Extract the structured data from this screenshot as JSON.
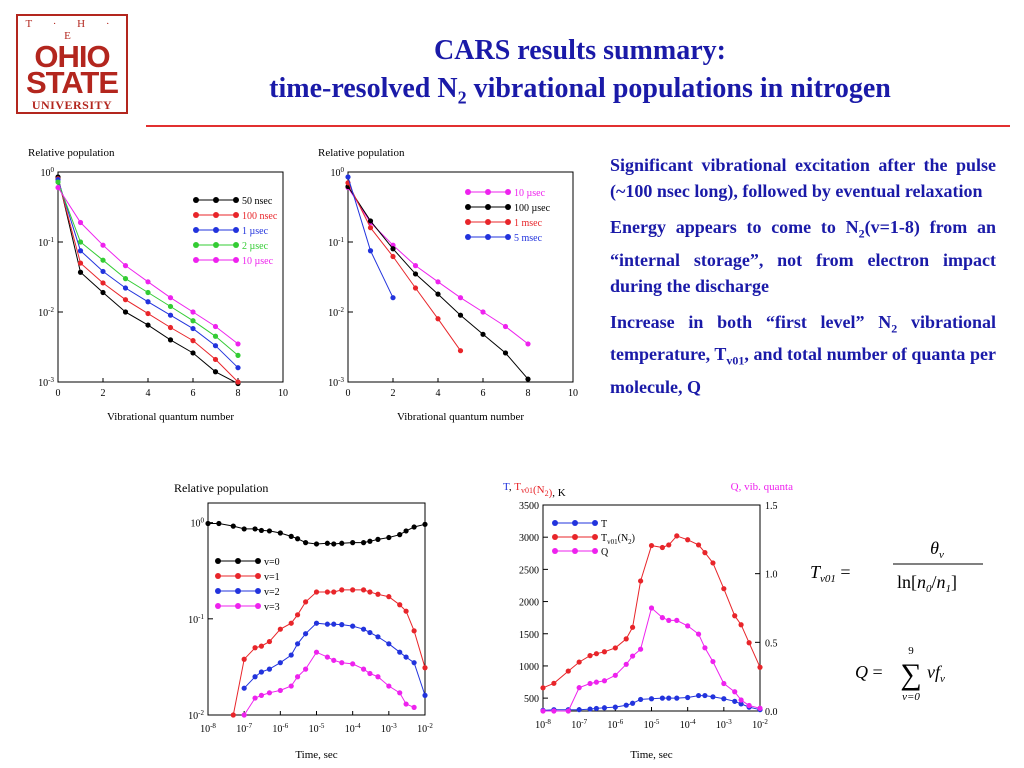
{
  "logo": {
    "line1": "T · H · E",
    "line2": "OHIO",
    "line3": "STATE",
    "line4": "UNIVERSITY"
  },
  "title": {
    "line1": "CARS results summary:",
    "line2_pre": "time-resolved N",
    "line2_sub": "2",
    "line2_post": " vibrational populations in nitrogen"
  },
  "bullets": [
    {
      "pre": "Significant vibrational excitation after the pulse (~100 nsec long), followed by eventual relaxation",
      "sub": "",
      "post": ""
    },
    {
      "pre": "Energy appears to come to N",
      "sub": "2",
      "post": "(v=1-8) from an “internal storage”, not from electron impact during the discharge"
    },
    {
      "pre": "Increase in both “first level” N",
      "sub": "2",
      "post": " vibrational temperature, T",
      "sub2": "v01",
      "post2": ", and total number of quanta per molecule, Q"
    }
  ],
  "formulas": {
    "t_lhs": "T",
    "t_lhs_sub": "v01",
    "theta": "θ",
    "theta_sub": "v",
    "ln": "ln",
    "n0": "n",
    "n0_sub": "0",
    "n1": "n",
    "n1_sub": "1",
    "q_lhs": "Q",
    "sum_top": "9",
    "sum_bot": "v=0",
    "q_rhs": "vf",
    "q_rhs_sub": "v"
  },
  "chart_data": [
    {
      "type": "line",
      "ytitle": "Relative population",
      "xlabel": "Vibrational quantum number",
      "x": [
        0,
        1,
        2,
        3,
        4,
        5,
        6,
        7,
        8
      ],
      "xlim": [
        0,
        10
      ],
      "xticks": [
        0,
        2,
        4,
        6,
        8,
        10
      ],
      "ylog": true,
      "ylim": [
        0.001,
        1
      ],
      "yticks": [
        {
          "b": "10",
          "e": "0"
        },
        {
          "b": "10",
          "e": "-1"
        },
        {
          "b": "10",
          "e": "-2"
        },
        {
          "b": "10",
          "e": "-3"
        }
      ],
      "legend_position": "top-right",
      "series": [
        {
          "name": "50 nsec",
          "color": "#000000",
          "values": [
            0.85,
            0.037,
            0.019,
            0.01,
            0.0065,
            0.004,
            0.0026,
            0.0014,
            0.00095
          ]
        },
        {
          "name": "100 nsec",
          "color": "#e8252a",
          "values": [
            0.8,
            0.05,
            0.026,
            0.015,
            0.0095,
            0.006,
            0.0039,
            0.0021,
            0.001
          ]
        },
        {
          "name": "1 µsec",
          "color": "#2233dd",
          "values": [
            0.78,
            0.075,
            0.038,
            0.022,
            0.014,
            0.009,
            0.0058,
            0.0033,
            0.0016
          ]
        },
        {
          "name": "2 µsec",
          "color": "#33cc33",
          "values": [
            0.72,
            0.1,
            0.055,
            0.03,
            0.019,
            0.012,
            0.0075,
            0.0045,
            0.0024
          ]
        },
        {
          "name": "10 µsec",
          "color": "#ee22ee",
          "values": [
            0.6,
            0.19,
            0.09,
            0.046,
            0.027,
            0.016,
            0.01,
            0.0062,
            0.0035
          ]
        }
      ]
    },
    {
      "type": "line",
      "ytitle": "Relative population",
      "xlabel": "Vibrational quantum number",
      "xlim": [
        0,
        10
      ],
      "xticks": [
        0,
        2,
        4,
        6,
        8,
        10
      ],
      "ylog": true,
      "ylim": [
        0.001,
        1
      ],
      "yticks": [
        {
          "b": "10",
          "e": "0"
        },
        {
          "b": "10",
          "e": "-1"
        },
        {
          "b": "10",
          "e": "-2"
        },
        {
          "b": "10",
          "e": "-3"
        }
      ],
      "legend_position": "top-right",
      "series": [
        {
          "name": "10 µsec",
          "color": "#ee22ee",
          "x": [
            0,
            1,
            2,
            3,
            4,
            5,
            6,
            7,
            8
          ],
          "values": [
            0.6,
            0.19,
            0.09,
            0.046,
            0.027,
            0.016,
            0.01,
            0.0062,
            0.0035
          ]
        },
        {
          "name": "100 µsec",
          "color": "#000000",
          "x": [
            0,
            1,
            2,
            3,
            4,
            5,
            6,
            7,
            8
          ],
          "values": [
            0.62,
            0.2,
            0.08,
            0.035,
            0.018,
            0.009,
            0.0048,
            0.0026,
            0.0011
          ]
        },
        {
          "name": "1 msec",
          "color": "#e8252a",
          "x": [
            0,
            1,
            2,
            3,
            4,
            5
          ],
          "values": [
            0.7,
            0.16,
            0.062,
            0.022,
            0.008,
            0.0028
          ]
        },
        {
          "name": "5 msec",
          "color": "#2233dd",
          "x": [
            0,
            1,
            2
          ],
          "values": [
            0.85,
            0.075,
            0.016
          ]
        }
      ]
    },
    {
      "type": "line",
      "ytitle": "Relative population",
      "xlabel": "Time, sec",
      "xlog": true,
      "xlim": [
        1e-08,
        0.01
      ],
      "xticks": [
        {
          "b": "10",
          "e": "-8"
        },
        {
          "b": "10",
          "e": "-7"
        },
        {
          "b": "10",
          "e": "-6"
        },
        {
          "b": "10",
          "e": "-5"
        },
        {
          "b": "10",
          "e": "-4"
        },
        {
          "b": "10",
          "e": "-3"
        },
        {
          "b": "10",
          "e": "-2"
        }
      ],
      "ylog": true,
      "ylim": [
        0.01,
        1.6
      ],
      "yticks": [
        {
          "b": "10",
          "e": "0"
        },
        {
          "b": "10",
          "e": "-1"
        },
        {
          "b": "10",
          "e": "-2"
        }
      ],
      "legend_position": "top-left",
      "x": [
        1e-08,
        2e-08,
        5e-08,
        1e-07,
        2e-07,
        3e-07,
        5e-07,
        1e-06,
        2e-06,
        3e-06,
        5e-06,
        1e-05,
        2e-05,
        3e-05,
        5e-05,
        0.0001,
        0.0002,
        0.0003,
        0.0005,
        0.001,
        0.002,
        0.003,
        0.005,
        0.01
      ],
      "series": [
        {
          "name": "v=0",
          "color": "#000000",
          "values": [
            0.98,
            0.98,
            0.92,
            0.86,
            0.86,
            0.83,
            0.82,
            0.78,
            0.72,
            0.68,
            0.62,
            0.6,
            0.61,
            0.6,
            0.61,
            0.62,
            0.62,
            0.64,
            0.67,
            0.7,
            0.75,
            0.82,
            0.9,
            0.96
          ]
        },
        {
          "name": "v=1",
          "color": "#e8252a",
          "values": [
            null,
            null,
            0.01,
            0.038,
            0.05,
            0.052,
            0.058,
            0.078,
            0.09,
            0.11,
            0.15,
            0.19,
            0.19,
            0.19,
            0.2,
            0.2,
            0.2,
            0.19,
            0.18,
            0.17,
            0.14,
            0.12,
            0.075,
            0.031
          ]
        },
        {
          "name": "v=2",
          "color": "#2233dd",
          "values": [
            null,
            null,
            null,
            0.019,
            0.025,
            0.028,
            0.03,
            0.035,
            0.042,
            0.055,
            0.07,
            0.09,
            0.088,
            0.088,
            0.087,
            0.084,
            0.078,
            0.072,
            0.065,
            0.055,
            0.045,
            0.04,
            0.035,
            0.016
          ]
        },
        {
          "name": "v=3",
          "color": "#ee22ee",
          "values": [
            null,
            null,
            null,
            0.01,
            0.015,
            0.016,
            0.017,
            0.018,
            0.02,
            0.025,
            0.03,
            0.045,
            0.04,
            0.037,
            0.035,
            0.034,
            0.03,
            0.027,
            0.025,
            0.02,
            0.017,
            0.013,
            0.012,
            null
          ]
        }
      ]
    },
    {
      "type": "line",
      "ytitle_parts": [
        {
          "t": "T",
          "c": "#2233dd",
          "sub": ""
        },
        {
          "t": ", ",
          "c": "#000000",
          "sub": ""
        },
        {
          "t": "T",
          "c": "#e8252a",
          "sub": "v01"
        },
        {
          "t": "(N",
          "c": "#e8252a",
          "sub": "2"
        },
        {
          "t": ")",
          "c": "#e8252a",
          "sub": ""
        },
        {
          "t": ", K",
          "c": "#000000",
          "sub": ""
        }
      ],
      "y2title": "Q, vib. quanta",
      "xlabel": "Time, sec",
      "xlog": true,
      "xlim": [
        1e-08,
        0.01
      ],
      "xticks": [
        {
          "b": "10",
          "e": "-8"
        },
        {
          "b": "10",
          "e": "-7"
        },
        {
          "b": "10",
          "e": "-6"
        },
        {
          "b": "10",
          "e": "-5"
        },
        {
          "b": "10",
          "e": "-4"
        },
        {
          "b": "10",
          "e": "-3"
        },
        {
          "b": "10",
          "e": "-2"
        }
      ],
      "ylim": [
        300,
        3500
      ],
      "yticks": [
        500,
        1000,
        1500,
        2000,
        2500,
        3000,
        3500
      ],
      "y2lim": [
        0.0,
        1.5
      ],
      "y2ticks": [
        "0.0",
        "0.5",
        "1.0",
        "1.5"
      ],
      "legend_position": "top-left",
      "x": [
        1e-08,
        2e-08,
        5e-08,
        1e-07,
        2e-07,
        3e-07,
        5e-07,
        1e-06,
        2e-06,
        3e-06,
        5e-06,
        1e-05,
        2e-05,
        3e-05,
        5e-05,
        0.0001,
        0.0002,
        0.0003,
        0.0005,
        0.001,
        0.002,
        0.003,
        0.005,
        0.01
      ],
      "series": [
        {
          "name": "T",
          "color": "#2233dd",
          "axis": "left",
          "values": [
            310,
            320,
            320,
            320,
            330,
            340,
            350,
            360,
            390,
            420,
            480,
            490,
            500,
            500,
            500,
            510,
            540,
            540,
            520,
            490,
            450,
            410,
            360,
            320
          ]
        },
        {
          "name": "T",
          "sub": "v01",
          "tail": "(N",
          "sub2": "2",
          "tail2": ")",
          "color": "#e8252a",
          "axis": "left",
          "values": [
            660,
            730,
            920,
            1060,
            1160,
            1190,
            1220,
            1280,
            1420,
            1600,
            2320,
            2870,
            2840,
            2880,
            3020,
            2960,
            2880,
            2760,
            2600,
            2200,
            1780,
            1640,
            1360,
            980
          ]
        },
        {
          "name": "Q",
          "color": "#ee22ee",
          "axis": "right",
          "values": [
            0.0,
            0.0,
            0.0,
            0.17,
            0.2,
            0.21,
            0.22,
            0.26,
            0.34,
            0.4,
            0.45,
            0.75,
            0.68,
            0.66,
            0.66,
            0.62,
            0.56,
            0.46,
            0.36,
            0.2,
            0.14,
            0.08,
            0.04,
            0.02
          ]
        }
      ]
    }
  ]
}
